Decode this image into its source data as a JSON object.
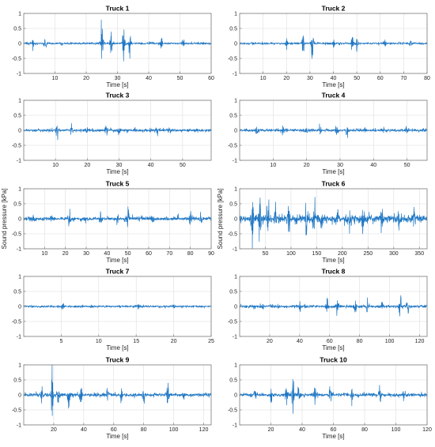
{
  "colors": {
    "signal": "#1f77c4",
    "grid": "#dedede",
    "axis": "#7a7a7a"
  },
  "chart_data": [
    {
      "type": "line",
      "title": "Truck 1",
      "xlabel": "Time [s]",
      "ylabel": "",
      "xlim": [
        0,
        60
      ],
      "ylim": [
        -1,
        1
      ],
      "xticks": [
        10,
        20,
        30,
        40,
        50,
        60
      ],
      "yticks": [
        -1,
        -0.5,
        0,
        0.5,
        1
      ],
      "grid": true,
      "baseline_amp": 0.03,
      "bursts": [
        [
          3,
          0.14
        ],
        [
          7,
          0.18
        ],
        [
          12,
          0.12
        ],
        [
          25,
          0.65
        ],
        [
          28,
          0.38
        ],
        [
          32,
          0.48
        ],
        [
          34,
          0.28
        ],
        [
          44,
          0.2
        ],
        [
          51,
          0.28
        ]
      ]
    },
    {
      "type": "line",
      "title": "Truck 2",
      "xlabel": "Time [s]",
      "ylabel": "",
      "xlim": [
        0,
        80
      ],
      "ylim": [
        -1,
        1
      ],
      "xticks": [
        10,
        20,
        30,
        40,
        50,
        60,
        70,
        80
      ],
      "yticks": [
        -1,
        -0.5,
        0,
        0.5,
        1
      ],
      "grid": true,
      "baseline_amp": 0.03,
      "bursts": [
        [
          20,
          0.2
        ],
        [
          27,
          0.32
        ],
        [
          31,
          0.65
        ],
        [
          40,
          0.18
        ],
        [
          48,
          0.38
        ],
        [
          50,
          0.28
        ],
        [
          62,
          0.12
        ],
        [
          73,
          0.12
        ]
      ]
    },
    {
      "type": "line",
      "title": "Truck 3",
      "xlabel": "Time [s]",
      "ylabel": "",
      "xlim": [
        0,
        59
      ],
      "ylim": [
        -1,
        1
      ],
      "xticks": [
        10,
        20,
        30,
        40,
        50
      ],
      "yticks": [
        -1,
        -0.5,
        0,
        0.5,
        1
      ],
      "grid": true,
      "baseline_amp": 0.04,
      "bursts": [
        [
          10.5,
          0.3
        ],
        [
          15,
          0.12
        ],
        [
          20,
          0.1
        ],
        [
          26,
          0.3
        ],
        [
          30,
          0.12
        ],
        [
          35,
          0.1
        ],
        [
          42,
          0.1
        ],
        [
          46,
          0.08
        ]
      ]
    },
    {
      "type": "line",
      "title": "Truck 4",
      "xlabel": "Time [s]",
      "ylabel": "",
      "xlim": [
        0,
        56
      ],
      "ylim": [
        -1,
        1
      ],
      "xticks": [
        10,
        20,
        30,
        40,
        50
      ],
      "yticks": [
        -1,
        -0.5,
        0,
        0.5,
        1
      ],
      "grid": true,
      "baseline_amp": 0.04,
      "bursts": [
        [
          5,
          0.1
        ],
        [
          13,
          0.1
        ],
        [
          20,
          0.1
        ],
        [
          24,
          0.2
        ],
        [
          29,
          0.15
        ],
        [
          32,
          0.14
        ],
        [
          43,
          0.1
        ],
        [
          50,
          0.1
        ]
      ]
    },
    {
      "type": "line",
      "title": "Truck 5",
      "xlabel": "Time [s]",
      "ylabel": "Sound pressure [kPa]",
      "xlim": [
        0,
        90
      ],
      "ylim": [
        -1,
        1
      ],
      "xticks": [
        10,
        20,
        30,
        40,
        50,
        60,
        70,
        80,
        90
      ],
      "yticks": [
        -1,
        -0.5,
        0,
        0.5,
        1
      ],
      "grid": true,
      "baseline_amp": 0.05,
      "bursts": [
        [
          5,
          0.1
        ],
        [
          13,
          0.12
        ],
        [
          22,
          0.2
        ],
        [
          29,
          0.22
        ],
        [
          37,
          0.12
        ],
        [
          45,
          0.14
        ],
        [
          50,
          0.38
        ],
        [
          62,
          0.12
        ],
        [
          74,
          0.18
        ],
        [
          80,
          0.2
        ],
        [
          85,
          0.15
        ]
      ]
    },
    {
      "type": "line",
      "title": "Truck 6",
      "xlabel": "Time [s]",
      "ylabel": "Sound pressure [kPa]",
      "xlim": [
        0,
        365
      ],
      "ylim": [
        -1,
        1
      ],
      "xticks": [
        50,
        100,
        150,
        200,
        250,
        300,
        350
      ],
      "yticks": [
        -1,
        -0.5,
        0,
        0.5,
        1
      ],
      "grid": true,
      "baseline_amp": 0.12,
      "bursts": [
        [
          25,
          0.7
        ],
        [
          40,
          0.75
        ],
        [
          55,
          0.55
        ],
        [
          70,
          0.45
        ],
        [
          95,
          0.4
        ],
        [
          130,
          0.45
        ],
        [
          145,
          0.5
        ],
        [
          160,
          0.35
        ],
        [
          190,
          0.38
        ],
        [
          215,
          0.3
        ],
        [
          240,
          0.32
        ],
        [
          275,
          0.3
        ],
        [
          310,
          0.28
        ],
        [
          340,
          0.25
        ]
      ]
    },
    {
      "type": "line",
      "title": "Truck 7",
      "xlabel": "Time [s]",
      "ylabel": "",
      "xlim": [
        0,
        25
      ],
      "ylim": [
        -1,
        1
      ],
      "xticks": [
        5,
        10,
        15,
        20,
        25
      ],
      "yticks": [
        -1,
        -0.5,
        0,
        0.5,
        1
      ],
      "grid": true,
      "baseline_amp": 0.03,
      "bursts": [
        [
          5.2,
          0.1
        ],
        [
          15.3,
          0.12
        ],
        [
          9,
          0.05
        ],
        [
          20,
          0.05
        ]
      ]
    },
    {
      "type": "line",
      "title": "Truck 8",
      "xlabel": "Time [s]",
      "ylabel": "",
      "xlim": [
        0,
        125
      ],
      "ylim": [
        -1,
        1
      ],
      "xticks": [
        20,
        40,
        60,
        80,
        100,
        120
      ],
      "yticks": [
        -1,
        -0.5,
        0,
        0.5,
        1
      ],
      "grid": true,
      "baseline_amp": 0.04,
      "bursts": [
        [
          15,
          0.1
        ],
        [
          40,
          0.1
        ],
        [
          58,
          0.25
        ],
        [
          65,
          0.22
        ],
        [
          77,
          0.25
        ],
        [
          85,
          0.2
        ],
        [
          95,
          0.12
        ],
        [
          107,
          0.55
        ],
        [
          112,
          0.3
        ]
      ]
    },
    {
      "type": "line",
      "title": "Truck 9",
      "xlabel": "Time [s]",
      "ylabel": "",
      "xlim": [
        0,
        125
      ],
      "ylim": [
        -1,
        1
      ],
      "xticks": [
        20,
        40,
        60,
        80,
        100,
        120
      ],
      "yticks": [
        -1,
        -0.5,
        0,
        0.5,
        1
      ],
      "grid": true,
      "baseline_amp": 0.05,
      "bursts": [
        [
          12,
          0.3
        ],
        [
          19,
          0.95
        ],
        [
          23,
          0.4
        ],
        [
          30,
          0.55
        ],
        [
          38,
          0.3
        ],
        [
          56,
          0.3
        ],
        [
          65,
          0.2
        ],
        [
          80,
          0.2
        ],
        [
          96,
          0.3
        ],
        [
          107,
          0.2
        ]
      ]
    },
    {
      "type": "line",
      "title": "Truck 10",
      "xlabel": "Time [s]",
      "ylabel": "",
      "xlim": [
        0,
        120
      ],
      "ylim": [
        -1,
        1
      ],
      "xticks": [
        20,
        40,
        60,
        80,
        100,
        120
      ],
      "yticks": [
        -1,
        -0.5,
        0,
        0.5,
        1
      ],
      "grid": true,
      "baseline_amp": 0.05,
      "bursts": [
        [
          10,
          0.2
        ],
        [
          20,
          0.25
        ],
        [
          30,
          0.3
        ],
        [
          34,
          0.7
        ],
        [
          38,
          0.35
        ],
        [
          48,
          0.2
        ],
        [
          58,
          0.25
        ],
        [
          72,
          0.25
        ],
        [
          90,
          0.2
        ],
        [
          105,
          0.15
        ]
      ]
    }
  ]
}
